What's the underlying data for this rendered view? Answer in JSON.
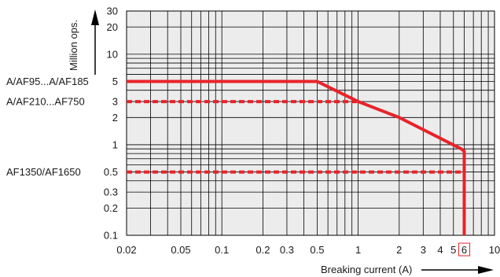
{
  "chart_data": {
    "type": "line",
    "title": "",
    "xlabel": "Breaking current (A)",
    "ylabel": "Million ops.",
    "x_scale": "log",
    "y_scale": "log",
    "xlim": [
      0.02,
      10
    ],
    "ylim": [
      0.1,
      30
    ],
    "grid": true,
    "x_ticks": [
      {
        "value": 0.02,
        "label": "0.02"
      },
      {
        "value": 0.05,
        "label": "0.05"
      },
      {
        "value": 0.1,
        "label": "0.1"
      },
      {
        "value": 0.2,
        "label": "0.2"
      },
      {
        "value": 0.3,
        "label": "0.3"
      },
      {
        "value": 0.5,
        "label": "0.5"
      },
      {
        "value": 1,
        "label": "1"
      },
      {
        "value": 2,
        "label": "2"
      },
      {
        "value": 3,
        "label": "3"
      },
      {
        "value": 4,
        "label": "4"
      },
      {
        "value": 5,
        "label": "5"
      },
      {
        "value": 6,
        "label": "6",
        "boxed": true
      },
      {
        "value": 10,
        "label": "10"
      }
    ],
    "y_ticks": [
      {
        "value": 0.1,
        "label": "0.1"
      },
      {
        "value": 0.2,
        "label": "0.2"
      },
      {
        "value": 0.3,
        "label": "0.3"
      },
      {
        "value": 0.5,
        "label": "0.5"
      },
      {
        "value": 1,
        "label": "1"
      },
      {
        "value": 2,
        "label": "2"
      },
      {
        "value": 3,
        "label": "3"
      },
      {
        "value": 5,
        "label": "5"
      },
      {
        "value": 10,
        "label": "10"
      },
      {
        "value": 20,
        "label": "20"
      },
      {
        "value": 30,
        "label": "30"
      }
    ],
    "series": [
      {
        "name": "A/AF95...A/AF185",
        "style": "solid",
        "color": "#e8232a",
        "x": [
          0.02,
          0.5,
          1,
          2,
          5.7,
          6,
          6
        ],
        "y": [
          5,
          5,
          3,
          2,
          0.9,
          0.85,
          0.1
        ]
      },
      {
        "name": "A/AF210...AF750",
        "style": "dashed",
        "color": "#e8232a",
        "x": [
          0.02,
          1
        ],
        "y": [
          3,
          3
        ]
      },
      {
        "name": "AF1350/AF1650",
        "style": "dashed",
        "color": "#e8232a",
        "x": [
          0.02,
          6,
          6
        ],
        "y": [
          0.5,
          0.5,
          0.1
        ]
      }
    ]
  }
}
